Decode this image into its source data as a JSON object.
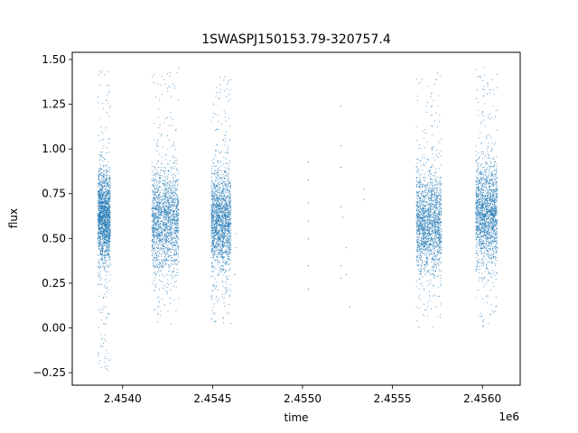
{
  "chart_data": {
    "type": "scatter",
    "title": "1SWASPJ150153.79-320757.4",
    "xlabel": "time",
    "ylabel": "flux",
    "x_offset_label": "1e6",
    "xlim": [
      2.45372,
      2.45621
    ],
    "ylim": [
      -0.32,
      1.54
    ],
    "x_ticks": [
      2.454,
      2.4545,
      2.455,
      2.4555,
      2.456
    ],
    "x_tick_labels": [
      "2.4540",
      "2.4545",
      "2.4550",
      "2.4555",
      "2.4560"
    ],
    "y_ticks": [
      -0.25,
      0.0,
      0.25,
      0.5,
      0.75,
      1.0,
      1.25,
      1.5
    ],
    "y_tick_labels": [
      "−0.25",
      "0.00",
      "0.25",
      "0.50",
      "0.75",
      "1.00",
      "1.25",
      "1.50"
    ],
    "grid": false,
    "marker_color": "#1f77b4",
    "series": [
      {
        "clusters": [
          {
            "x_range": [
              2.45386,
              2.45393
            ],
            "y_center": 0.62,
            "y_spread": 0.13,
            "y_min": -0.24,
            "y_max": 1.44
          },
          {
            "x_range": [
              2.45416,
              2.45431
            ],
            "y_center": 0.6,
            "y_spread": 0.14,
            "y_min": 0.02,
            "y_max": 1.46
          },
          {
            "x_range": [
              2.45449,
              2.4546
            ],
            "y_center": 0.6,
            "y_spread": 0.14,
            "y_min": 0.02,
            "y_max": 1.42
          },
          {
            "x_range": [
              2.45563,
              2.45577
            ],
            "y_center": 0.6,
            "y_spread": 0.14,
            "y_min": 0.0,
            "y_max": 1.43
          },
          {
            "x_range": [
              2.45596,
              2.45608
            ],
            "y_center": 0.64,
            "y_spread": 0.14,
            "y_min": 0.0,
            "y_max": 1.46
          }
        ],
        "isolated_points": [
          {
            "x": 2.45463,
            "y": 0.53
          },
          {
            "x": 2.45463,
            "y": 0.45
          },
          {
            "x": 2.45462,
            "y": 0.3
          },
          {
            "x": 2.45503,
            "y": 0.93
          },
          {
            "x": 2.45503,
            "y": 0.83
          },
          {
            "x": 2.45503,
            "y": 0.7
          },
          {
            "x": 2.45503,
            "y": 0.6
          },
          {
            "x": 2.45503,
            "y": 0.5
          },
          {
            "x": 2.45503,
            "y": 0.35
          },
          {
            "x": 2.45503,
            "y": 0.22
          },
          {
            "x": 2.45521,
            "y": 1.24
          },
          {
            "x": 2.45521,
            "y": 1.02
          },
          {
            "x": 2.45521,
            "y": 0.9
          },
          {
            "x": 2.45521,
            "y": 0.68
          },
          {
            "x": 2.45521,
            "y": 0.35
          },
          {
            "x": 2.45521,
            "y": 0.28
          },
          {
            "x": 2.45522,
            "y": 0.62
          },
          {
            "x": 2.45524,
            "y": 0.45
          },
          {
            "x": 2.45524,
            "y": 0.3
          },
          {
            "x": 2.45526,
            "y": 0.12
          },
          {
            "x": 2.45534,
            "y": 0.78
          },
          {
            "x": 2.45534,
            "y": 0.72
          }
        ]
      }
    ]
  }
}
